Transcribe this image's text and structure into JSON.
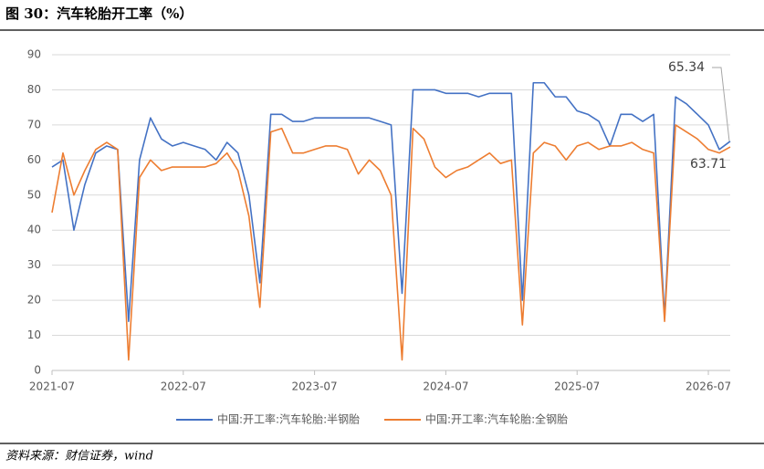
{
  "chart_data": {
    "type": "line",
    "title": "图 30：汽车轮胎开工率（%）",
    "source": "资料来源：财信证券，wind",
    "x": [
      "2021-07",
      "2021-08",
      "2021-09",
      "2021-10",
      "2021-11",
      "2021-12",
      "2022-01",
      "2022-02",
      "2022-03",
      "2022-04",
      "2022-05",
      "2022-06",
      "2022-07",
      "2022-08",
      "2022-09",
      "2022-10",
      "2022-11",
      "2022-12",
      "2023-01",
      "2023-02",
      "2023-03",
      "2023-04",
      "2023-05",
      "2023-06",
      "2023-07",
      "2023-08",
      "2023-09",
      "2023-10",
      "2023-11",
      "2023-12",
      "2024-01",
      "2024-02",
      "2024-03",
      "2024-04",
      "2024-05",
      "2024-06",
      "2024-07",
      "2024-08",
      "2024-09",
      "2024-10",
      "2024-11",
      "2024-12",
      "2025-01",
      "2025-02",
      "2025-03",
      "2025-04",
      "2025-05",
      "2025-06",
      "2025-07",
      "2025-08",
      "2025-09",
      "2025-10",
      "2025-11",
      "2025-12",
      "2026-01",
      "2026-02",
      "2026-03",
      "2026-04",
      "2026-05",
      "2026-06",
      "2026-07",
      "2026-08",
      "2026-09"
    ],
    "xticks": [
      "2021-07",
      "2022-07",
      "2023-07",
      "2024-07",
      "2025-07",
      "2026-07"
    ],
    "series": [
      {
        "name": "中国:开工率:汽车轮胎:半钢胎",
        "color": "#4472c4",
        "values": [
          58,
          60,
          40,
          53,
          62,
          64,
          63,
          14,
          60,
          72,
          66,
          64,
          65,
          64,
          63,
          60,
          65,
          62,
          50,
          25,
          73,
          73,
          71,
          71,
          72,
          72,
          72,
          72,
          72,
          72,
          71,
          70,
          22,
          80,
          80,
          80,
          79,
          79,
          79,
          78,
          79,
          79,
          79,
          20,
          82,
          82,
          78,
          78,
          74,
          73,
          71,
          64,
          73,
          73,
          71,
          73,
          15,
          78,
          76,
          73,
          70,
          63,
          65.34
        ]
      },
      {
        "name": "中国:开工率:汽车轮胎:全钢胎",
        "color": "#ed7d31",
        "values": [
          45,
          62,
          50,
          57,
          63,
          65,
          63,
          3,
          55,
          60,
          57,
          58,
          58,
          58,
          58,
          59,
          62,
          57,
          44,
          18,
          68,
          69,
          62,
          62,
          63,
          64,
          64,
          63,
          56,
          60,
          57,
          50,
          3,
          69,
          66,
          58,
          55,
          57,
          58,
          60,
          62,
          59,
          60,
          13,
          62,
          65,
          64,
          60,
          64,
          65,
          63,
          64,
          64,
          65,
          63,
          62,
          14,
          70,
          68,
          66,
          63,
          62,
          63.71
        ]
      }
    ],
    "ylim": [
      0,
      90
    ],
    "yticks": [
      0,
      10,
      20,
      30,
      40,
      50,
      60,
      70,
      80,
      90
    ],
    "grid": true
  }
}
